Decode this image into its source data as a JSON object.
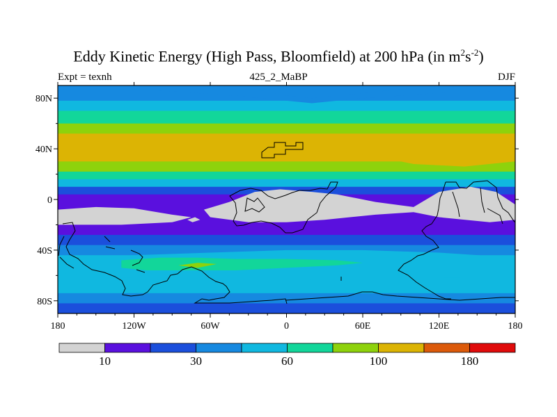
{
  "title": {
    "main": "Eddy Kinetic Energy (High Pass, Bloomfield) at 200 hPa (in m",
    "sup1": "2",
    "s": "s",
    "sup2": "-2",
    "close": ")"
  },
  "subtitle": {
    "left": "Expt = texnh",
    "center": "425_2_MaBP",
    "right": "DJF"
  },
  "chart_data": {
    "type": "heatmap",
    "title": "Eddy Kinetic Energy (High Pass, Bloomfield) at 200 hPa (in m^2 s^-2)",
    "subtitle_left": "Expt = texnh",
    "subtitle_center": "425_2_MaBP",
    "subtitle_right": "DJF",
    "xlim": [
      -180,
      180
    ],
    "ylim": [
      -90,
      90
    ],
    "x_ticks": [
      {
        "value": -180,
        "label": "180"
      },
      {
        "value": -120,
        "label": "120W"
      },
      {
        "value": -60,
        "label": "60W"
      },
      {
        "value": 0,
        "label": "0"
      },
      {
        "value": 60,
        "label": "60E"
      },
      {
        "value": 120,
        "label": "120E"
      },
      {
        "value": 180,
        "label": "180"
      }
    ],
    "y_ticks": [
      {
        "value": 80,
        "label": "80N"
      },
      {
        "value": 40,
        "label": "40N"
      },
      {
        "value": 0,
        "label": "0"
      },
      {
        "value": -40,
        "label": "40S"
      },
      {
        "value": -80,
        "label": "80S"
      }
    ],
    "colorbar": {
      "colors": [
        "#d3d3d3",
        "#5a10de",
        "#1b4fdc",
        "#1689e0",
        "#10b8e0",
        "#12d69a",
        "#8ed20c",
        "#dcb404",
        "#dc5a0a",
        "#e00b0b"
      ],
      "labels": [
        {
          "after_index": 0,
          "text": "10"
        },
        {
          "after_index": 2,
          "text": "30"
        },
        {
          "after_index": 4,
          "text": "60"
        },
        {
          "after_index": 6,
          "text": "100"
        },
        {
          "after_index": 8,
          "text": "180"
        }
      ]
    },
    "latitude_bands": [
      {
        "lat_top": 90,
        "lat_bottom": 86,
        "level": 3
      },
      {
        "lat_top": 86,
        "lat_bottom": 78,
        "level": 3
      },
      {
        "lat_top": 78,
        "lat_bottom": 70,
        "level": 4
      },
      {
        "lat_top": 70,
        "lat_bottom": 60,
        "level": 5
      },
      {
        "lat_top": 60,
        "lat_bottom": 52,
        "level": 6
      },
      {
        "lat_top": 52,
        "lat_bottom": 30,
        "level": 7
      },
      {
        "lat_top": 30,
        "lat_bottom": 22,
        "level": 6
      },
      {
        "lat_top": 22,
        "lat_bottom": 16,
        "level": 5
      },
      {
        "lat_top": 16,
        "lat_bottom": 10,
        "level": 4
      },
      {
        "lat_top": 10,
        "lat_bottom": 4,
        "level": 2
      },
      {
        "lat_top": 4,
        "lat_bottom": -20,
        "level": 1
      },
      {
        "lat_top": -20,
        "lat_bottom": -28,
        "level": 1
      },
      {
        "lat_top": -28,
        "lat_bottom": -36,
        "level": 2
      },
      {
        "lat_top": -36,
        "lat_bottom": -44,
        "level": 3
      },
      {
        "lat_top": -44,
        "lat_bottom": -62,
        "level": 4
      },
      {
        "lat_top": -62,
        "lat_bottom": -74,
        "level": 4
      },
      {
        "lat_top": -74,
        "lat_bottom": -82,
        "level": 3
      },
      {
        "lat_top": -82,
        "lat_bottom": -90,
        "level": 2
      }
    ],
    "regions": [
      {
        "level": 7,
        "points": [
          [
            -180,
            48
          ],
          [
            -120,
            46
          ],
          [
            -80,
            44
          ],
          [
            -40,
            42
          ],
          [
            0,
            40
          ],
          [
            40,
            38
          ],
          [
            70,
            34
          ],
          [
            100,
            28
          ],
          [
            140,
            26
          ],
          [
            180,
            30
          ],
          [
            180,
            48
          ]
        ]
      },
      {
        "level": 3,
        "points": [
          [
            -180,
            90
          ],
          [
            -60,
            90
          ],
          [
            -20,
            86
          ],
          [
            0,
            82
          ],
          [
            20,
            80
          ],
          [
            60,
            84
          ],
          [
            100,
            88
          ],
          [
            180,
            90
          ],
          [
            180,
            86
          ],
          [
            120,
            84
          ],
          [
            60,
            80
          ],
          [
            20,
            76
          ],
          [
            0,
            78
          ],
          [
            -40,
            82
          ],
          [
            -100,
            86
          ],
          [
            -180,
            86
          ]
        ]
      },
      {
        "level": 0,
        "points": [
          [
            -180,
            -8
          ],
          [
            -150,
            -6
          ],
          [
            -120,
            -7
          ],
          [
            -90,
            -12
          ],
          [
            -75,
            -14
          ],
          [
            -90,
            -18
          ],
          [
            -130,
            -20
          ],
          [
            -180,
            -20
          ]
        ]
      },
      {
        "level": 0,
        "points": [
          [
            -65,
            -8
          ],
          [
            -45,
            -2
          ],
          [
            -25,
            6
          ],
          [
            -5,
            8
          ],
          [
            20,
            6
          ],
          [
            40,
            4
          ],
          [
            70,
            -2
          ],
          [
            100,
            -6
          ],
          [
            120,
            6
          ],
          [
            145,
            10
          ],
          [
            165,
            6
          ],
          [
            180,
            -4
          ],
          [
            180,
            -16
          ],
          [
            160,
            -18
          ],
          [
            120,
            -14
          ],
          [
            100,
            -10
          ],
          [
            70,
            -12
          ],
          [
            30,
            -16
          ],
          [
            0,
            -18
          ],
          [
            -30,
            -18
          ],
          [
            -60,
            -14
          ]
        ]
      },
      {
        "level": 0,
        "points": [
          [
            -78,
            -16
          ],
          [
            -72,
            -14
          ],
          [
            -68,
            -16
          ],
          [
            -74,
            -18
          ]
        ]
      },
      {
        "level": 4,
        "points": [
          [
            -180,
            -46
          ],
          [
            -120,
            -44
          ],
          [
            -60,
            -42
          ],
          [
            0,
            -40
          ],
          [
            60,
            -40
          ],
          [
            120,
            -42
          ],
          [
            180,
            -46
          ],
          [
            180,
            -60
          ],
          [
            120,
            -62
          ],
          [
            60,
            -62
          ],
          [
            0,
            -64
          ],
          [
            -60,
            -64
          ],
          [
            -120,
            -62
          ],
          [
            -180,
            -58
          ]
        ]
      },
      {
        "level": 5,
        "points": [
          [
            -130,
            -48
          ],
          [
            -100,
            -46
          ],
          [
            -70,
            -46
          ],
          [
            -40,
            -47
          ],
          [
            0,
            -47
          ],
          [
            40,
            -48
          ],
          [
            60,
            -50
          ],
          [
            40,
            -52
          ],
          [
            0,
            -54
          ],
          [
            -40,
            -56
          ],
          [
            -80,
            -56
          ],
          [
            -110,
            -56
          ],
          [
            -130,
            -54
          ]
        ]
      },
      {
        "level": 6,
        "points": [
          [
            -85,
            -52
          ],
          [
            -70,
            -50
          ],
          [
            -55,
            -51
          ],
          [
            -70,
            -54
          ]
        ]
      }
    ]
  }
}
